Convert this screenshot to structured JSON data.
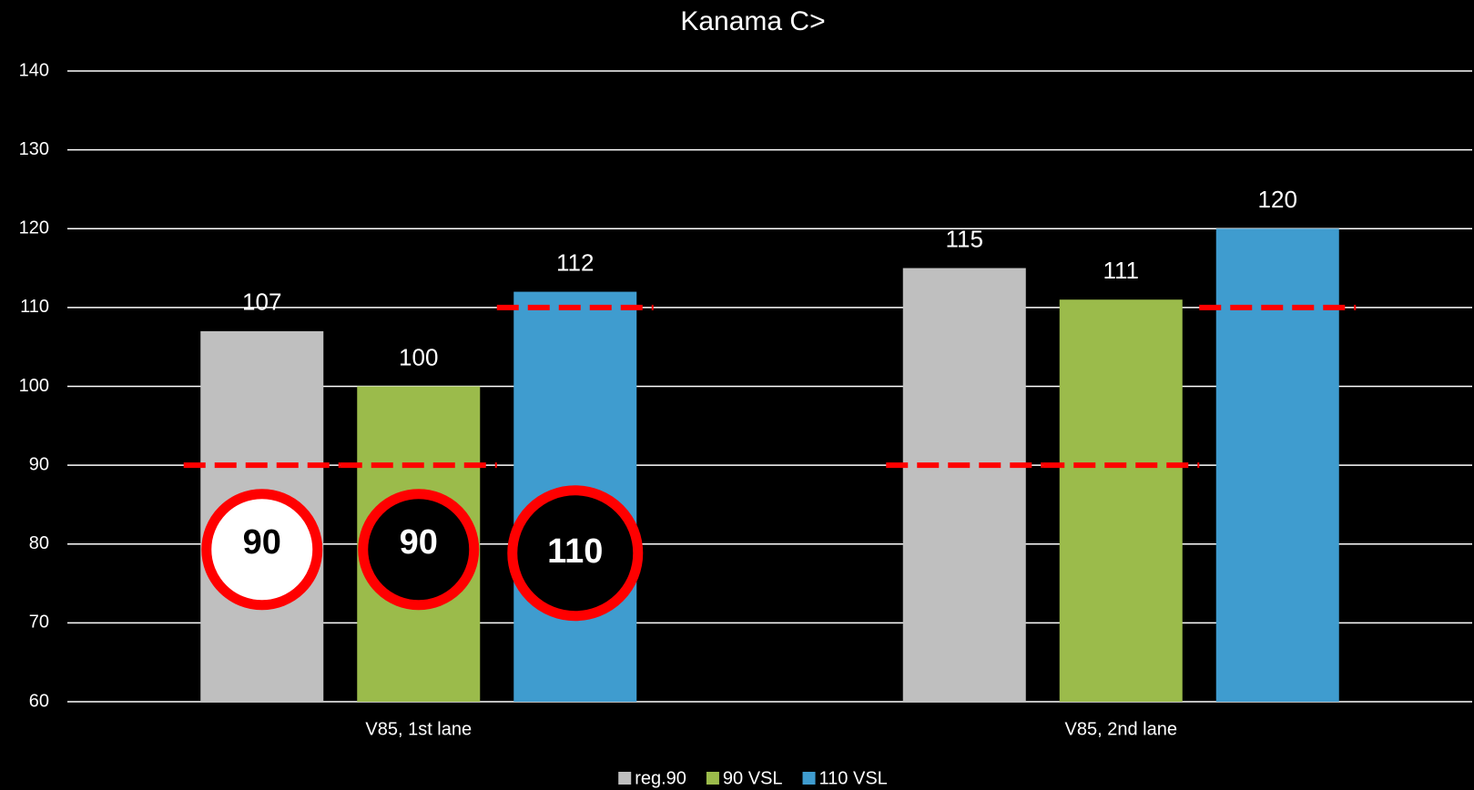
{
  "chart_data": {
    "type": "bar",
    "title": "Kanama C>",
    "categories": [
      "V85, 1st lane",
      "V85, 2nd lane"
    ],
    "series": [
      {
        "name": "reg.90",
        "color": "#bfbfbf",
        "values": [
          107,
          115
        ],
        "limit": 90,
        "sign_color": "#ffffff"
      },
      {
        "name": "90 VSL",
        "color": "#9bbb4b",
        "values": [
          100,
          111
        ],
        "limit": 90,
        "sign_color": "#000000"
      },
      {
        "name": "110 VSL",
        "color": "#3f9ccf",
        "values": [
          112,
          120
        ],
        "limit": 110,
        "sign_color": "#000000"
      }
    ],
    "ylim": [
      60,
      140
    ],
    "yticks": [
      60,
      70,
      80,
      90,
      100,
      110,
      120,
      130,
      140
    ],
    "grid": true,
    "legend": "bottom"
  }
}
